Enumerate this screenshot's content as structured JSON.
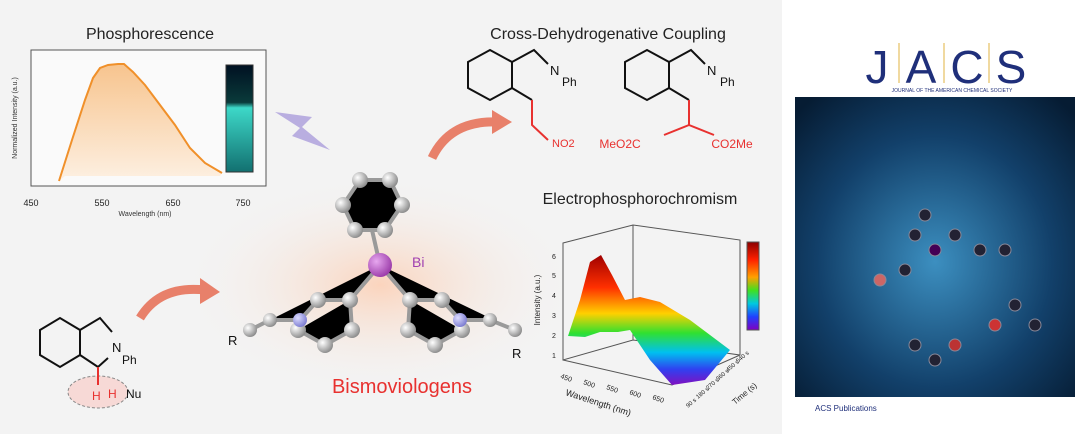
{
  "phosphorescence": {
    "title": "Phosphorescence",
    "ylabel": "Normalized Intensity (a.u.)",
    "xlabel": "Wavelength (nm)",
    "xticks": [
      "450",
      "550",
      "650",
      "750"
    ],
    "curve_color": "#f0902a"
  },
  "cdc": {
    "title": "Cross-Dehydrogenative Coupling",
    "n_label": "N",
    "ph_label": "Ph",
    "no2_label": "NO2",
    "ester_left": "MeO2C",
    "ester_right": "CO2Me",
    "accent": "#e8312f"
  },
  "center": {
    "bi_label": "Bi",
    "r_left": "R",
    "r_right": "R",
    "name": "Bismoviologens",
    "name_color": "#e8312f"
  },
  "substrate": {
    "n_label": "N",
    "ph_label": "Ph",
    "h1": "H",
    "h2": "H",
    "nu": "Nu"
  },
  "epc": {
    "title": "Electrophosphorochromism",
    "ylabel": "Intensity (a.u.)",
    "xlabel": "Wavelength (nm)",
    "zlabel": "Time (s)",
    "yticks": [
      "1",
      "2",
      "3",
      "4",
      "5",
      "6"
    ],
    "xticks": [
      "450",
      "500",
      "550",
      "600",
      "650"
    ],
    "zticks": [
      "90 s",
      "180 s",
      "270 s",
      "360 s",
      "450 s",
      "540 s"
    ]
  },
  "cover": {
    "journal_letters": [
      "J",
      "A",
      "C",
      "S"
    ],
    "journal_name": "JOURNAL OF THE AMERICAN CHEMICAL SOCIETY",
    "publisher": "ACS Publications",
    "brand_color": "#1f2f7a"
  }
}
